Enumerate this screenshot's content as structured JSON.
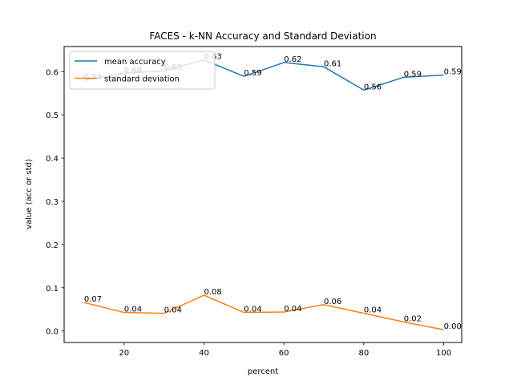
{
  "chart_data": {
    "type": "line",
    "title": "FACES - k-NN Accuracy and Standard Deviation",
    "xlabel": "percent",
    "ylabel": "value (acc or std)",
    "x": [
      10,
      20,
      30,
      40,
      50,
      60,
      70,
      80,
      90,
      100
    ],
    "xlim": [
      5,
      104.5
    ],
    "ylim": [
      -0.0265,
      0.658
    ],
    "xticks": [
      20,
      40,
      60,
      80,
      100
    ],
    "yticks": [
      0.0,
      0.1,
      0.2,
      0.3,
      0.4,
      0.5,
      0.6
    ],
    "xtick_labels": [
      "20",
      "40",
      "60",
      "80",
      "100"
    ],
    "ytick_labels": [
      "0.0",
      "0.1",
      "0.2",
      "0.3",
      "0.4",
      "0.5",
      "0.6"
    ],
    "grid": false,
    "legend_position": "top-left",
    "series": [
      {
        "name": "mean accuracy",
        "color": "#1f77b4",
        "values": [
          0.58,
          0.596,
          0.602,
          0.627,
          0.589,
          0.621,
          0.611,
          0.557,
          0.587,
          0.592
        ],
        "labels": [
          "0.58",
          "0.60",
          "0.60",
          "0.63",
          "0.59",
          "0.62",
          "0.61",
          "0.56",
          "0.59",
          "0.59"
        ]
      },
      {
        "name": "standard deviation",
        "color": "#ff7f0e",
        "values": [
          0.066,
          0.043,
          0.041,
          0.083,
          0.043,
          0.044,
          0.061,
          0.041,
          0.021,
          0.003
        ],
        "labels": [
          "0.07",
          "0.04",
          "0.04",
          "0.08",
          "0.04",
          "0.04",
          "0.06",
          "0.04",
          "0.02",
          "0.00"
        ]
      }
    ]
  }
}
